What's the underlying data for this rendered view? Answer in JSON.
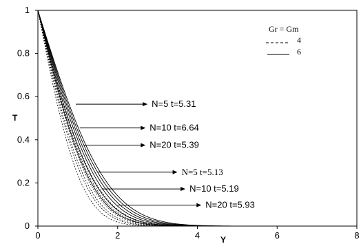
{
  "chart_data": {
    "type": "line",
    "xlabel": "Y",
    "ylabel": "T",
    "xlim": [
      0,
      8
    ],
    "ylim": [
      0,
      1
    ],
    "x_ticks": [
      "0",
      "2",
      "4",
      "6",
      "8"
    ],
    "y_ticks": [
      "0",
      "0.2",
      "0.4",
      "0.6",
      "0.8",
      "1"
    ],
    "grid": false,
    "legend": {
      "title": "Gr = Gm",
      "placement": "top-right",
      "entries": [
        {
          "label": "4",
          "style": "dashed"
        },
        {
          "label": "6",
          "style": "solid"
        }
      ]
    },
    "series": [
      {
        "group": "4",
        "style": "dashed",
        "decay": 0.6
      },
      {
        "group": "4",
        "style": "dashed",
        "decay": 0.65
      },
      {
        "group": "4",
        "style": "dashed",
        "decay": 0.68
      },
      {
        "group": "4",
        "style": "dashed",
        "decay": 0.72
      },
      {
        "group": "4",
        "style": "dashed",
        "decay": 0.76
      },
      {
        "group": "4",
        "style": "dashed",
        "decay": 0.8
      },
      {
        "group": "6",
        "style": "solid",
        "decay": 0.74
      },
      {
        "group": "6",
        "style": "solid",
        "decay": 0.79
      },
      {
        "group": "6",
        "style": "solid",
        "decay": 0.84
      },
      {
        "group": "6",
        "style": "solid",
        "decay": 0.88
      },
      {
        "group": "6",
        "style": "solid",
        "decay": 0.92
      },
      {
        "group": "6",
        "style": "solid",
        "decay": 0.96
      }
    ],
    "annotations": [
      {
        "text": "N=5  t=5.31",
        "x_start": 0.95,
        "y": 0.565,
        "x_end": 2.75,
        "font": "sans"
      },
      {
        "text": "N=10  t=6.64",
        "x_start": 1.05,
        "y": 0.455,
        "x_end": 2.7,
        "font": "sans"
      },
      {
        "text": "N=20   t=5.39",
        "x_start": 1.15,
        "y": 0.375,
        "x_end": 2.7,
        "font": "sans"
      },
      {
        "text": "N=5    t=5.13",
        "x_start": 1.5,
        "y": 0.25,
        "x_end": 3.5,
        "font": "serif"
      },
      {
        "text": "N=10    t=5.19",
        "x_start": 1.6,
        "y": 0.172,
        "x_end": 3.7,
        "font": "sans"
      },
      {
        "text": "N=20   t=5.93",
        "x_start": 2.0,
        "y": 0.097,
        "x_end": 4.1,
        "font": "sans"
      }
    ]
  }
}
